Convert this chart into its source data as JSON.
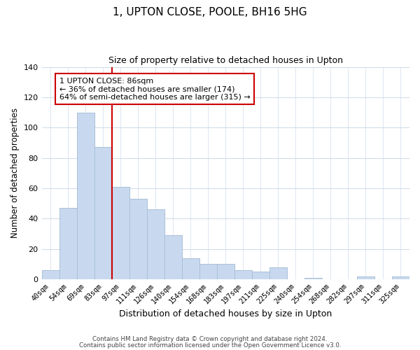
{
  "title": "1, UPTON CLOSE, POOLE, BH16 5HG",
  "subtitle": "Size of property relative to detached houses in Upton",
  "xlabel": "Distribution of detached houses by size in Upton",
  "ylabel": "Number of detached properties",
  "bar_labels": [
    "40sqm",
    "54sqm",
    "69sqm",
    "83sqm",
    "97sqm",
    "111sqm",
    "126sqm",
    "140sqm",
    "154sqm",
    "168sqm",
    "183sqm",
    "197sqm",
    "211sqm",
    "225sqm",
    "240sqm",
    "254sqm",
    "268sqm",
    "282sqm",
    "297sqm",
    "311sqm",
    "325sqm"
  ],
  "bar_values": [
    6,
    47,
    110,
    87,
    61,
    53,
    46,
    29,
    14,
    10,
    10,
    6,
    5,
    8,
    0,
    1,
    0,
    0,
    2,
    0,
    2
  ],
  "bar_color": "#c8d9ef",
  "bar_edge_color": "#a8bfd8",
  "vline_color": "#cc0000",
  "ylim": [
    0,
    140
  ],
  "yticks": [
    0,
    20,
    40,
    60,
    80,
    100,
    120,
    140
  ],
  "annotation_title": "1 UPTON CLOSE: 86sqm",
  "annotation_line1": "← 36% of detached houses are smaller (174)",
  "annotation_line2": "64% of semi-detached houses are larger (315) →",
  "annotation_box_color": "#ffffff",
  "annotation_box_edge": "#cc0000",
  "footer1": "Contains HM Land Registry data © Crown copyright and database right 2024.",
  "footer2": "Contains public sector information licensed under the Open Government Licence v3.0.",
  "background_color": "#ffffff",
  "grid_color": "#d0dcea"
}
